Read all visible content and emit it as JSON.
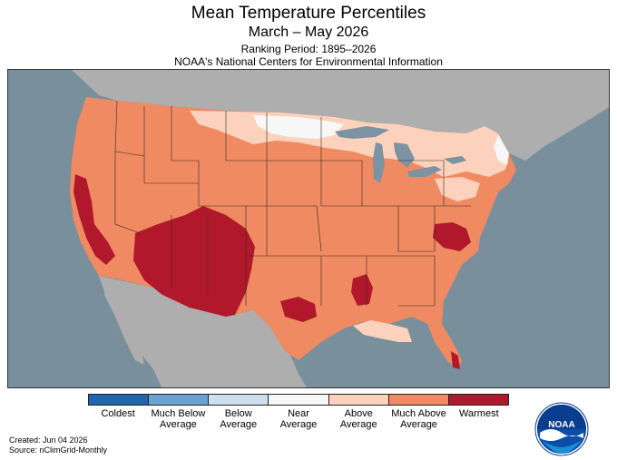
{
  "header": {
    "title": "Mean Temperature Percentiles",
    "period": "March – May 2026",
    "ranking": "Ranking Period: 1895–2026",
    "source_org": "NOAA's National Centers for Environmental Information"
  },
  "legend": {
    "categories": [
      {
        "label": "Coldest",
        "color": "#2166ac"
      },
      {
        "label": "Much Below\nAverage",
        "color": "#6aa3d1"
      },
      {
        "label": "Below\nAverage",
        "color": "#cde0f0"
      },
      {
        "label": "Near\nAverage",
        "color": "#f7f7f7"
      },
      {
        "label": "Above\nAverage",
        "color": "#fdd2bc"
      },
      {
        "label": "Much Above\nAverage",
        "color": "#ef8a62"
      },
      {
        "label": "Warmest",
        "color": "#b2182b"
      }
    ]
  },
  "map": {
    "ocean_color": "#7a8f9c",
    "land_outside_color": "#aeaeae",
    "water_color": "#7b93a3"
  },
  "footer": {
    "created": "Created: Jun 04 2026",
    "source": "Source: nClimGrid-Monthly"
  },
  "logo": {
    "text": "NOAA",
    "icon": "noaa-logo"
  }
}
